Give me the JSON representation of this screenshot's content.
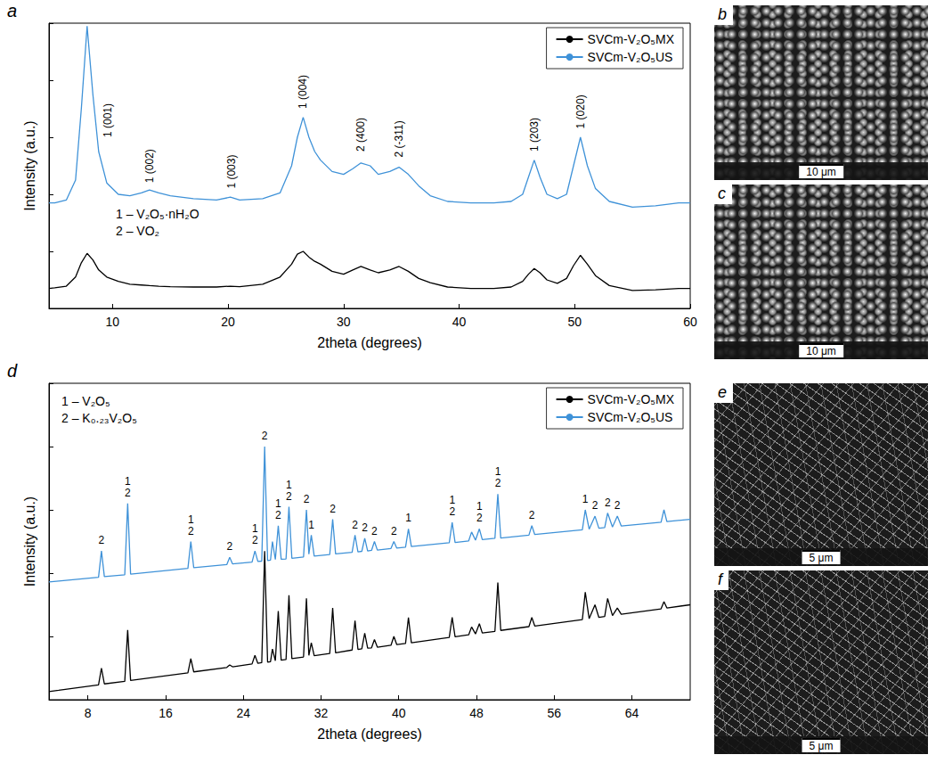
{
  "chart_data": [
    {
      "type": "line",
      "panel": "a",
      "xlabel": "2theta (degrees)",
      "ylabel": "Intensity (a.u.)",
      "xlim": [
        4.5,
        60
      ],
      "xticks": [
        10,
        20,
        30,
        40,
        50,
        60
      ],
      "ylim": [
        0,
        100
      ],
      "yticks": [
        0,
        20,
        40,
        60,
        80,
        100
      ],
      "tick_labels": "x",
      "grid": false,
      "legend": "upper right",
      "marker": "none",
      "line_style": "solid",
      "key": [
        "1 – V₂O₅·nH₂O",
        "2 – VO₂"
      ],
      "x": [
        4.5,
        5,
        6,
        6.8,
        7.3,
        7.8,
        8.3,
        8.8,
        9.5,
        10.5,
        11.5,
        12.5,
        13.2,
        14,
        15,
        17,
        19,
        20.2,
        21,
        23,
        24.5,
        25.5,
        26,
        26.5,
        27,
        27.5,
        28,
        29,
        30,
        30.8,
        31.5,
        32.3,
        33,
        34,
        34.8,
        35.6,
        36.5,
        37.5,
        39,
        41,
        43,
        44.5,
        45.5,
        46,
        46.5,
        47,
        47.6,
        48.5,
        49.3,
        49.9,
        50.5,
        51.1,
        51.8,
        53,
        55,
        57,
        59,
        60
      ],
      "series": [
        {
          "name": "SVCm-V₂O₅MX",
          "color": "#000000",
          "values": [
            7,
            7.2,
            7.8,
            11,
            16,
            19.3,
            17,
            13.5,
            11,
            9.5,
            8.5,
            8.2,
            8,
            7.8,
            7.6,
            7.5,
            7.5,
            7.8,
            7.6,
            8.5,
            11,
            15.5,
            19,
            20,
            18,
            16.5,
            15.5,
            13,
            12,
            13.5,
            14.7,
            13.5,
            12.5,
            13.5,
            14.7,
            13,
            10.5,
            9,
            7.5,
            7,
            7,
            7.5,
            9.5,
            12,
            14,
            12.5,
            10,
            8.8,
            10.5,
            15,
            18.6,
            15.5,
            11.5,
            8,
            6.3,
            6.5,
            7,
            7
          ]
        },
        {
          "name": "SVCm-V₂O₅US",
          "color": "#3f92d8",
          "values": [
            37,
            37,
            38,
            45,
            70,
            99,
            75,
            55,
            44,
            40,
            39.5,
            40.5,
            41.5,
            40.5,
            39.5,
            38.5,
            38,
            39,
            38,
            38.5,
            40.5,
            50,
            60,
            67,
            60,
            55,
            52,
            48,
            47,
            49,
            51,
            50,
            47,
            48,
            49.5,
            47,
            43,
            39.5,
            37.5,
            37,
            37,
            37.5,
            40,
            46,
            52,
            46,
            40,
            38.5,
            40,
            50,
            60,
            50,
            42,
            37.5,
            35.5,
            36,
            37,
            37
          ]
        }
      ],
      "annotations": [
        {
          "text": "1 (001)",
          "x": 9.6,
          "y": 60
        },
        {
          "text": "1 (002)",
          "x": 13.2,
          "y": 44
        },
        {
          "text": "1 (003)",
          "x": 20.3,
          "y": 42
        },
        {
          "text": "1 (004)",
          "x": 26.5,
          "y": 70
        },
        {
          "text": "2 (400)",
          "x": 31.5,
          "y": 55
        },
        {
          "text": "2 (-311)",
          "x": 34.8,
          "y": 53
        },
        {
          "text": "1 (203)",
          "x": 46.5,
          "y": 55
        },
        {
          "text": "1 (020)",
          "x": 50.5,
          "y": 63
        }
      ]
    },
    {
      "type": "line",
      "panel": "d",
      "xlabel": "2theta (degrees)",
      "ylabel": "Intensity (a.u.)",
      "xlim": [
        4,
        70
      ],
      "xticks": [
        8,
        16,
        24,
        32,
        40,
        48,
        56,
        64
      ],
      "ylim": [
        0,
        100
      ],
      "yticks": [
        0,
        20,
        40,
        60,
        80,
        100
      ],
      "tick_labels": "x",
      "grid": false,
      "legend": "upper right",
      "marker": "none",
      "line_style": "solid",
      "key": [
        "1 – V₂O₅",
        "2 – K₀.₂₃V₂O₅"
      ],
      "x": [
        4,
        5,
        9.1,
        9.4,
        9.7,
        11.8,
        12.1,
        12.4,
        18.3,
        18.6,
        18.9,
        22.3,
        22.6,
        22.9,
        24.9,
        25.2,
        25.5,
        25.9,
        26.2,
        26.5,
        26.8,
        27,
        27.3,
        27.6,
        27.9,
        28.4,
        28.7,
        29,
        30.2,
        30.5,
        30.75,
        31,
        31.3,
        32.9,
        33.2,
        33.5,
        35.2,
        35.5,
        35.8,
        36.2,
        36.5,
        36.8,
        37.2,
        37.5,
        37.8,
        39.2,
        39.5,
        39.8,
        40.7,
        41,
        41.3,
        45.2,
        45.5,
        45.8,
        47.2,
        47.5,
        47.9,
        48.3,
        48.6,
        49.9,
        50.2,
        50.5,
        53.4,
        53.7,
        54,
        58.9,
        59.2,
        59.6,
        60.2,
        60.6,
        61.2,
        61.5,
        62,
        62.5,
        62.9,
        67,
        67.3,
        67.6,
        70
      ],
      "series": [
        {
          "name": "SVCm-V₂O₅MX",
          "color": "#000000",
          "values": [
            2.6,
            3,
            4.7,
            10,
            5,
            5.8,
            22,
            6.1,
            8.5,
            13,
            8.8,
            10.2,
            11,
            10.4,
            11.3,
            14,
            11.5,
            11.7,
            47,
            11.9,
            12,
            16,
            12.3,
            28,
            12.5,
            12.7,
            33,
            13,
            13.5,
            32,
            14,
            18,
            13.9,
            14.6,
            29,
            14.8,
            15.7,
            25,
            15.9,
            16.1,
            21,
            16.3,
            16.4,
            19,
            16.6,
            17.2,
            20,
            17.4,
            17.8,
            26,
            18,
            19.7,
            26,
            19.9,
            20.5,
            23,
            20.8,
            24,
            21.1,
            21.6,
            37,
            21.9,
            23.1,
            26,
            23.3,
            25.3,
            34,
            25.6,
            30,
            26,
            26.3,
            32,
            26.6,
            29,
            27,
            28.7,
            31,
            29,
            30
          ]
        },
        {
          "name": "SVCm-V₂O₅US",
          "color": "#3f92d8",
          "values": [
            37.2,
            37.5,
            38.7,
            47,
            38.9,
            39.5,
            62,
            39.7,
            41.5,
            50,
            41.7,
            42.7,
            45,
            42.9,
            43.5,
            47,
            43.7,
            43.8,
            80,
            44,
            44.1,
            50,
            44.3,
            55,
            44.4,
            44.5,
            61,
            44.7,
            45.1,
            60,
            46,
            52,
            45.4,
            45.9,
            57,
            46.1,
            46.6,
            52,
            46.7,
            46.9,
            51,
            47,
            47.2,
            50,
            47.3,
            47.8,
            50,
            47.9,
            48.2,
            54,
            48.4,
            49.6,
            56,
            49.7,
            50.2,
            53,
            50.4,
            54,
            50.6,
            51,
            65,
            51.1,
            52,
            55,
            52.2,
            53.7,
            60,
            53.9,
            58,
            54.2,
            54.4,
            59,
            54.6,
            58,
            54.9,
            56.1,
            60,
            56.3,
            57
          ]
        }
      ],
      "annotations": [
        {
          "text": "2",
          "x": 9.4,
          "y": 48.5
        },
        {
          "text": "1\n2",
          "x": 12.1,
          "y": 63.5
        },
        {
          "text": "1\n2",
          "x": 18.6,
          "y": 51.5
        },
        {
          "text": "2",
          "x": 22.6,
          "y": 46.5
        },
        {
          "text": "1\n2",
          "x": 25.2,
          "y": 48.5
        },
        {
          "text": "2",
          "x": 26.2,
          "y": 81.5
        },
        {
          "text": "1\n2",
          "x": 27.6,
          "y": 56.5
        },
        {
          "text": "1\n2",
          "x": 28.7,
          "y": 62.5
        },
        {
          "text": "2",
          "x": 30.5,
          "y": 61.5
        },
        {
          "text": "1",
          "x": 31,
          "y": 53.5
        },
        {
          "text": "2",
          "x": 33.2,
          "y": 58.5
        },
        {
          "text": "2",
          "x": 35.5,
          "y": 53.5
        },
        {
          "text": "2",
          "x": 36.5,
          "y": 52.5
        },
        {
          "text": "2",
          "x": 37.5,
          "y": 51.5
        },
        {
          "text": "2",
          "x": 39.5,
          "y": 51.5
        },
        {
          "text": "1",
          "x": 41,
          "y": 55.5
        },
        {
          "text": "1\n2",
          "x": 45.5,
          "y": 57.5
        },
        {
          "text": "1\n2",
          "x": 48.3,
          "y": 55.5
        },
        {
          "text": "1\n2",
          "x": 50.2,
          "y": 66.5
        },
        {
          "text": "2",
          "x": 53.7,
          "y": 56.5
        },
        {
          "text": "1",
          "x": 59.2,
          "y": 61.5
        },
        {
          "text": "2",
          "x": 60.2,
          "y": 59.5
        },
        {
          "text": "2",
          "x": 61.5,
          "y": 60.5
        },
        {
          "text": "2",
          "x": 62.5,
          "y": 59.5
        }
      ]
    }
  ],
  "images": [
    {
      "panel": "b",
      "scale_bar": "10 μm"
    },
    {
      "panel": "c",
      "scale_bar": "10 μm"
    },
    {
      "panel": "e",
      "scale_bar": "5 μm"
    },
    {
      "panel": "f",
      "scale_bar": "5 μm"
    }
  ]
}
